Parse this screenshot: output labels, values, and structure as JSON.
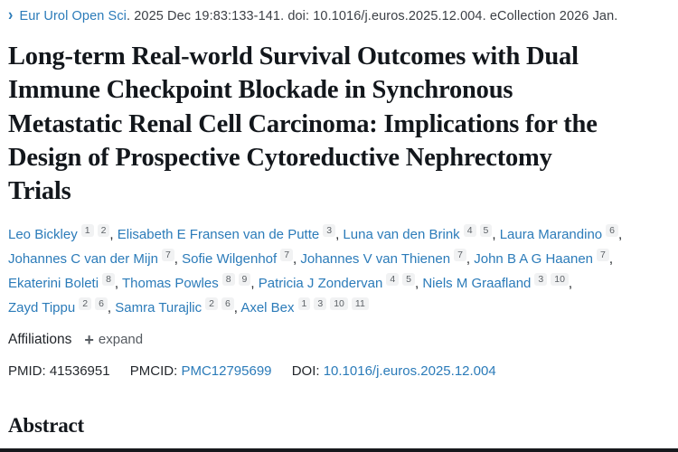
{
  "icons": {
    "chevron_right": "›",
    "plus": "+"
  },
  "colors": {
    "link_blue": "#2b7bb9",
    "text_dark": "#212529",
    "chip_bg": "#f1f2f3",
    "chip_text": "#5c6166",
    "bottom_bar": "#17191d"
  },
  "page": {
    "journal_line": {
      "journal": "Eur Urol Open Sci",
      "rest": ". 2025 Dec 19:83:133-141. doi: 10.1016/j.euros.2025.12.004. eCollection 2026 Jan."
    },
    "title": "Long-term Real-world Survival Outcomes with Dual Immune Checkpoint Blockade in Synchronous Metastatic Renal Cell Carcinoma: Implications for the Design of Prospective Cytoreductive Nephrectomy Trials",
    "authors": [
      {
        "name": "Leo Bickley",
        "affs": [
          "1",
          "2"
        ]
      },
      {
        "name": "Elisabeth E Fransen van de Putte",
        "affs": [
          "3"
        ]
      },
      {
        "name": "Luna van den Brink",
        "affs": [
          "4",
          "5"
        ]
      },
      {
        "name": "Laura Marandino",
        "affs": [
          "6"
        ]
      },
      {
        "name": "Johannes C van der Mijn",
        "affs": [
          "7"
        ]
      },
      {
        "name": "Sofie Wilgenhof",
        "affs": [
          "7"
        ]
      },
      {
        "name": "Johannes V van Thienen",
        "affs": [
          "7"
        ]
      },
      {
        "name": "John B A G Haanen",
        "affs": [
          "7"
        ]
      },
      {
        "name": "Ekaterini Boleti",
        "affs": [
          "8"
        ]
      },
      {
        "name": "Thomas Powles",
        "affs": [
          "8",
          "9"
        ]
      },
      {
        "name": "Patricia J Zondervan",
        "affs": [
          "4",
          "5"
        ]
      },
      {
        "name": "Niels M Graafland",
        "affs": [
          "3",
          "10"
        ]
      },
      {
        "name": "Zayd Tippu",
        "affs": [
          "2",
          "6"
        ]
      },
      {
        "name": "Samra Turajlic",
        "affs": [
          "2",
          "6"
        ]
      },
      {
        "name": "Axel Bex",
        "affs": [
          "1",
          "3",
          "10",
          "11"
        ]
      }
    ],
    "affiliations_label": "Affiliations",
    "expand_label": "expand",
    "ids": {
      "pmid_label": "PMID:",
      "pmid": "41536951",
      "pmcid_label": "PMCID:",
      "pmcid": "PMC12795699",
      "doi_label": "DOI:",
      "doi": "10.1016/j.euros.2025.12.004"
    },
    "abstract_heading": "Abstract"
  }
}
